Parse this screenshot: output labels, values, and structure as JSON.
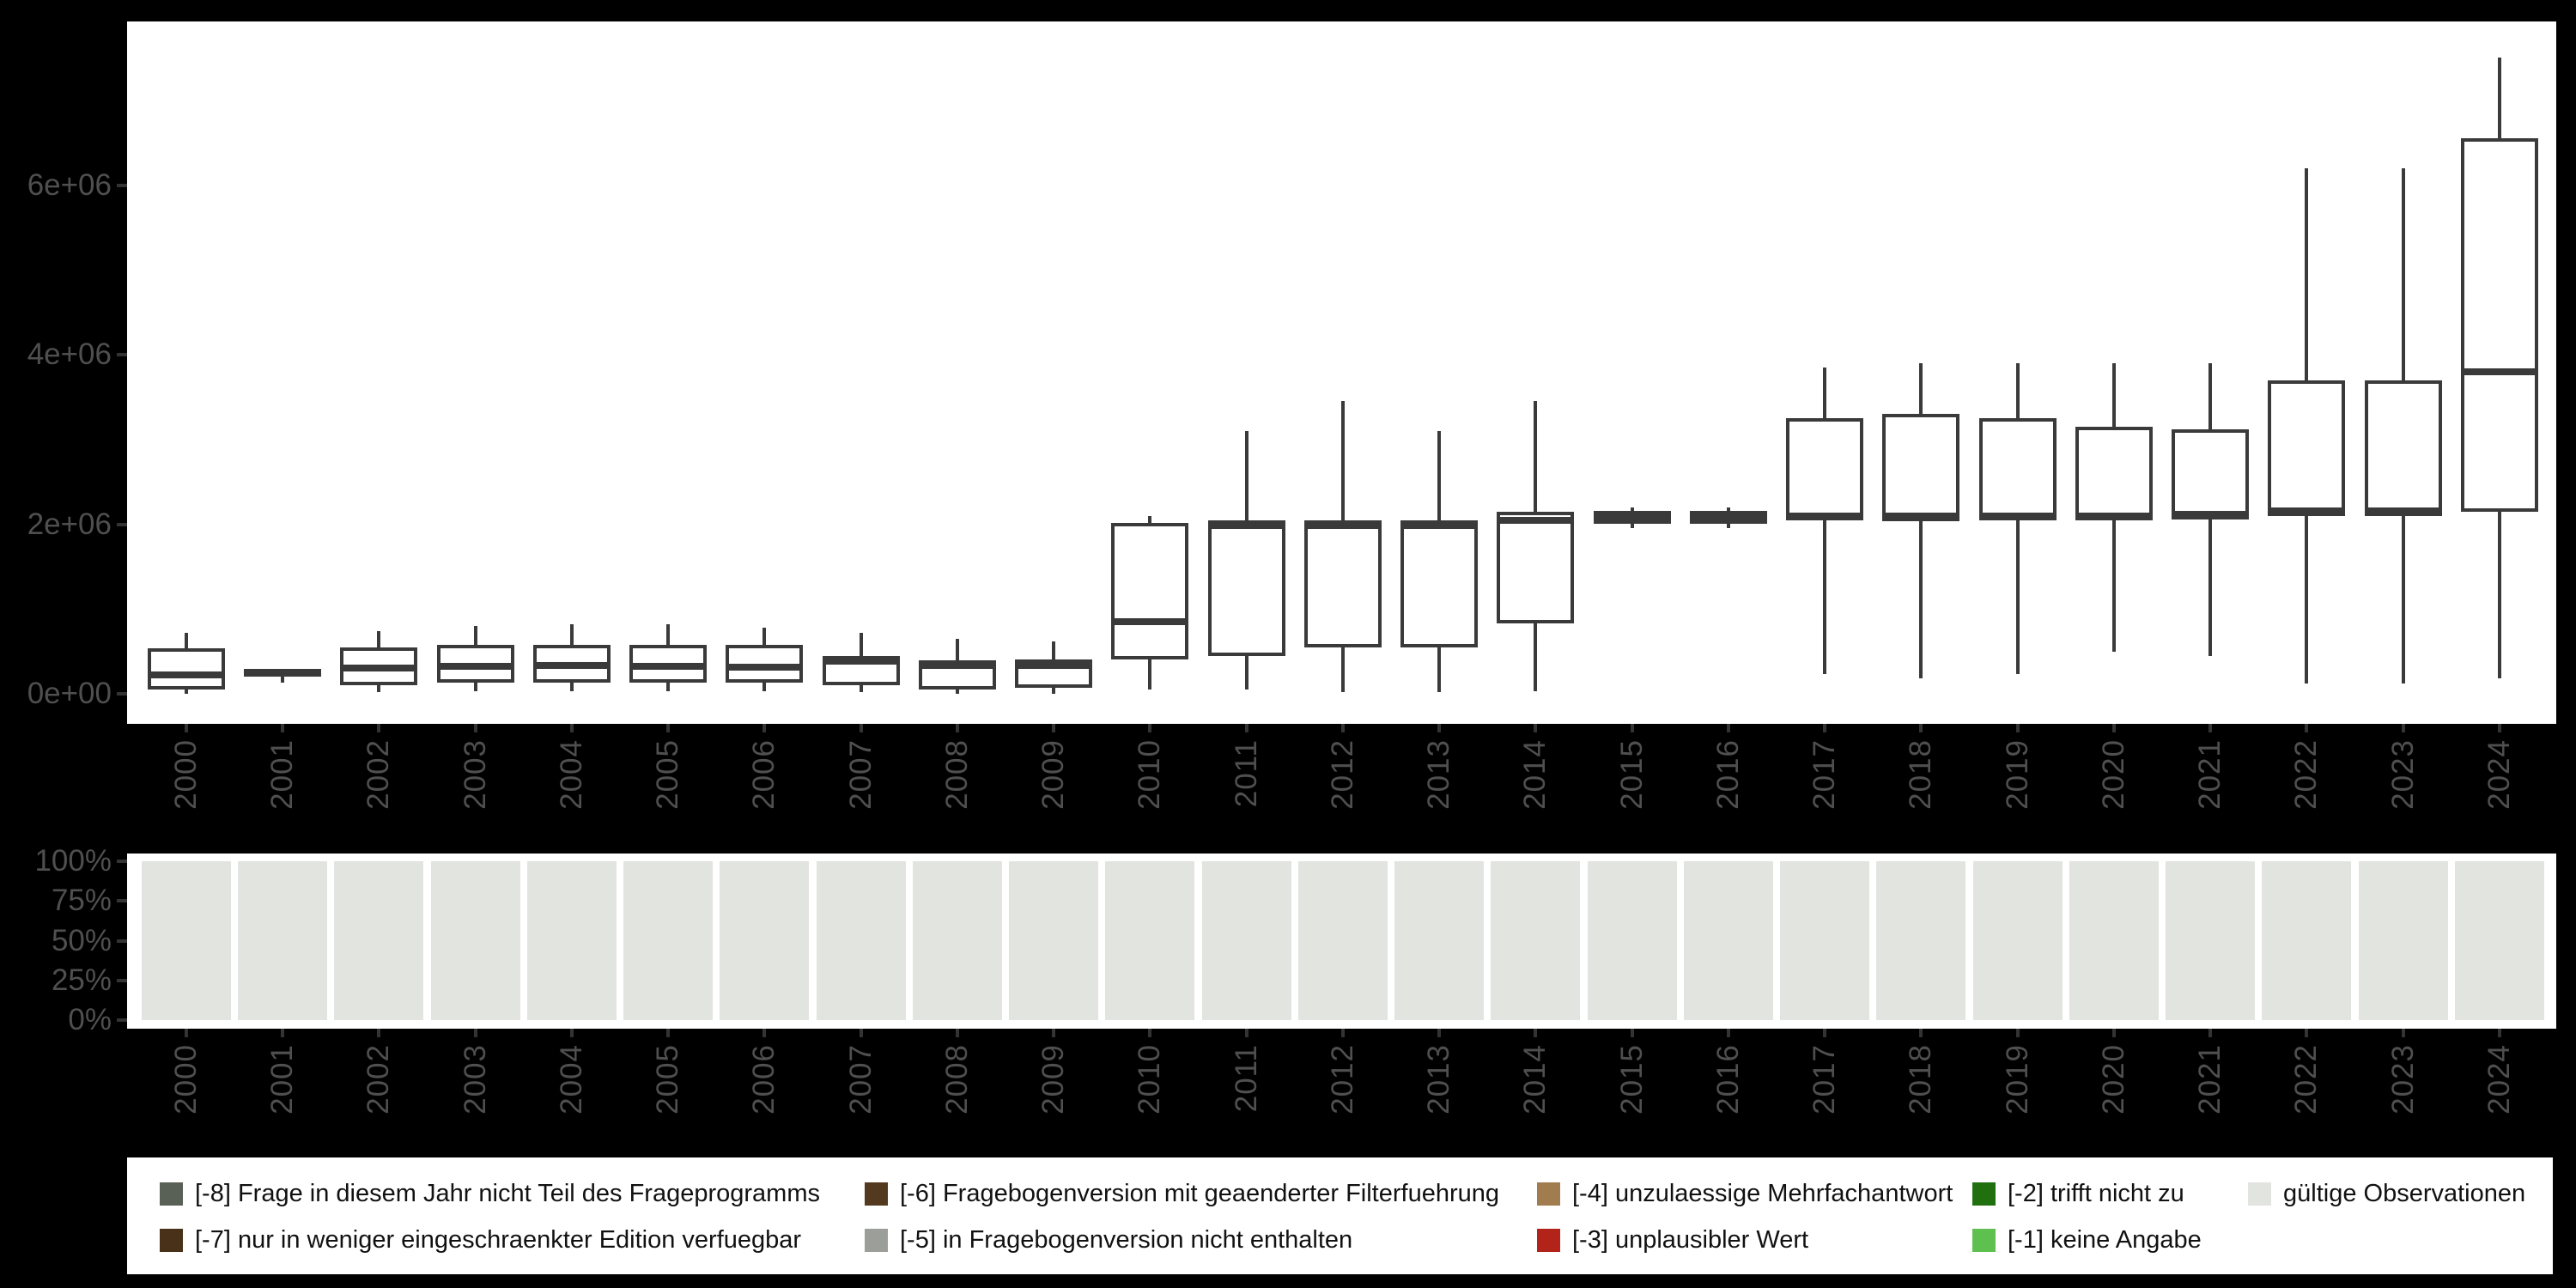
{
  "figure": {
    "background": "#000000",
    "panel_background": "#ffffff"
  },
  "palette": {
    "box_stroke": "#3a3a3a",
    "axis_text": "#4f4f4f",
    "tick_mark": "#333333",
    "legend_text": "#111111",
    "valid_fill": "#e1e4df"
  },
  "chart_data": [
    {
      "id": "values-boxplot",
      "type": "boxplot",
      "title": "",
      "xlabel": "",
      "ylabel": "",
      "grid": false,
      "x": [
        2000,
        2001,
        2002,
        2003,
        2004,
        2005,
        2006,
        2007,
        2008,
        2009,
        2010,
        2011,
        2012,
        2013,
        2014,
        2015,
        2016,
        2017,
        2018,
        2019,
        2020,
        2021,
        2022,
        2023,
        2024
      ],
      "y_ticks": [
        {
          "label": "0e+00",
          "value": 0
        },
        {
          "label": "2e+06",
          "value": 2000000
        },
        {
          "label": "4e+06",
          "value": 4000000
        },
        {
          "label": "6e+06",
          "value": 6000000
        }
      ],
      "ylim": [
        -350000,
        7930000
      ],
      "stats": [
        {
          "year": 2000,
          "min": 0,
          "q1": 50000,
          "median": 220000,
          "q3": 540000,
          "max": 720000
        },
        {
          "year": 2001,
          "min": 130000,
          "q1": 210000,
          "median": 250000,
          "q3": 285000,
          "max": 285000
        },
        {
          "year": 2002,
          "min": 20000,
          "q1": 100000,
          "median": 300000,
          "q3": 550000,
          "max": 740000
        },
        {
          "year": 2003,
          "min": 30000,
          "q1": 130000,
          "median": 320000,
          "q3": 580000,
          "max": 800000
        },
        {
          "year": 2004,
          "min": 30000,
          "q1": 130000,
          "median": 330000,
          "q3": 580000,
          "max": 820000
        },
        {
          "year": 2005,
          "min": 30000,
          "q1": 130000,
          "median": 320000,
          "q3": 580000,
          "max": 820000
        },
        {
          "year": 2006,
          "min": 30000,
          "q1": 130000,
          "median": 310000,
          "q3": 580000,
          "max": 780000
        },
        {
          "year": 2007,
          "min": 20000,
          "q1": 100000,
          "median": 380000,
          "q3": 450000,
          "max": 720000
        },
        {
          "year": 2008,
          "min": 0,
          "q1": 50000,
          "median": 330000,
          "q3": 400000,
          "max": 650000
        },
        {
          "year": 2009,
          "min": 0,
          "q1": 70000,
          "median": 330000,
          "q3": 410000,
          "max": 620000
        },
        {
          "year": 2010,
          "min": 50000,
          "q1": 400000,
          "median": 850000,
          "q3": 2020000,
          "max": 2100000
        },
        {
          "year": 2011,
          "min": 50000,
          "q1": 450000,
          "median": 1980000,
          "q3": 2050000,
          "max": 3100000
        },
        {
          "year": 2012,
          "min": 20000,
          "q1": 550000,
          "median": 1980000,
          "q3": 2050000,
          "max": 3450000
        },
        {
          "year": 2013,
          "min": 20000,
          "q1": 550000,
          "median": 1980000,
          "q3": 2050000,
          "max": 3100000
        },
        {
          "year": 2014,
          "min": 30000,
          "q1": 830000,
          "median": 2050000,
          "q3": 2150000,
          "max": 3450000
        },
        {
          "year": 2015,
          "min": 1950000,
          "q1": 2000000,
          "median": 2080000,
          "q3": 2160000,
          "max": 2200000
        },
        {
          "year": 2016,
          "min": 1950000,
          "q1": 2000000,
          "median": 2080000,
          "q3": 2160000,
          "max": 2200000
        },
        {
          "year": 2017,
          "min": 230000,
          "q1": 2050000,
          "median": 2100000,
          "q3": 3250000,
          "max": 3850000
        },
        {
          "year": 2018,
          "min": 180000,
          "q1": 2040000,
          "median": 2100000,
          "q3": 3300000,
          "max": 3900000
        },
        {
          "year": 2019,
          "min": 230000,
          "q1": 2050000,
          "median": 2100000,
          "q3": 3250000,
          "max": 3900000
        },
        {
          "year": 2020,
          "min": 500000,
          "q1": 2050000,
          "median": 2100000,
          "q3": 3150000,
          "max": 3900000
        },
        {
          "year": 2021,
          "min": 450000,
          "q1": 2060000,
          "median": 2120000,
          "q3": 3120000,
          "max": 3900000
        },
        {
          "year": 2022,
          "min": 120000,
          "q1": 2100000,
          "median": 2160000,
          "q3": 3700000,
          "max": 6200000
        },
        {
          "year": 2023,
          "min": 120000,
          "q1": 2100000,
          "median": 2160000,
          "q3": 3700000,
          "max": 6200000
        },
        {
          "year": 2024,
          "min": 180000,
          "q1": 2150000,
          "median": 3800000,
          "q3": 6550000,
          "max": 7500000
        }
      ]
    },
    {
      "id": "missing-shares",
      "type": "bar",
      "subtype": "stacked-percent",
      "title": "",
      "xlabel": "",
      "ylabel": "",
      "grid": false,
      "categories": [
        2000,
        2001,
        2002,
        2003,
        2004,
        2005,
        2006,
        2007,
        2008,
        2009,
        2010,
        2011,
        2012,
        2013,
        2014,
        2015,
        2016,
        2017,
        2018,
        2019,
        2020,
        2021,
        2022,
        2023,
        2024
      ],
      "y_ticks": [
        {
          "label": "100%",
          "value": 100
        },
        {
          "label": "75%",
          "value": 75
        },
        {
          "label": "50%",
          "value": 50
        },
        {
          "label": "25%",
          "value": 25
        },
        {
          "label": "0%",
          "value": 0
        }
      ],
      "ylim": [
        0,
        100
      ],
      "series": [
        {
          "name": "gültige Observationen",
          "color": "#e1e4df",
          "values": [
            100,
            100,
            100,
            100,
            100,
            100,
            100,
            100,
            100,
            100,
            100,
            100,
            100,
            100,
            100,
            100,
            100,
            100,
            100,
            100,
            100,
            100,
            100,
            100,
            100
          ]
        }
      ]
    }
  ],
  "legend": {
    "items": [
      {
        "label": "[-8] Frage in diesem Jahr nicht Teil des Frageprogramms",
        "color": "#596055",
        "row": 0,
        "col": 0
      },
      {
        "label": "[-7] nur in weniger eingeschraenkter Edition verfuegbar",
        "color": "#483019",
        "row": 1,
        "col": 0
      },
      {
        "label": "[-6] Fragebogenversion mit geaenderter Filterfuehrung",
        "color": "#53391e",
        "row": 0,
        "col": 1
      },
      {
        "label": "[-5] in Fragebogenversion nicht enthalten",
        "color": "#9b9e99",
        "row": 1,
        "col": 1
      },
      {
        "label": "[-4] unzulaessige Mehrfachantwort",
        "color": "#a07c4f",
        "row": 0,
        "col": 2
      },
      {
        "label": "[-3] unplausibler Wert",
        "color": "#b2231a",
        "row": 1,
        "col": 2
      },
      {
        "label": "[-2] trifft nicht zu",
        "color": "#20700f",
        "row": 0,
        "col": 3
      },
      {
        "label": "[-1] keine Angabe",
        "color": "#5ec04e",
        "row": 1,
        "col": 3
      },
      {
        "label": "gültige Observationen",
        "color": "#e1e4df",
        "row": 0,
        "col": 4
      }
    ]
  }
}
